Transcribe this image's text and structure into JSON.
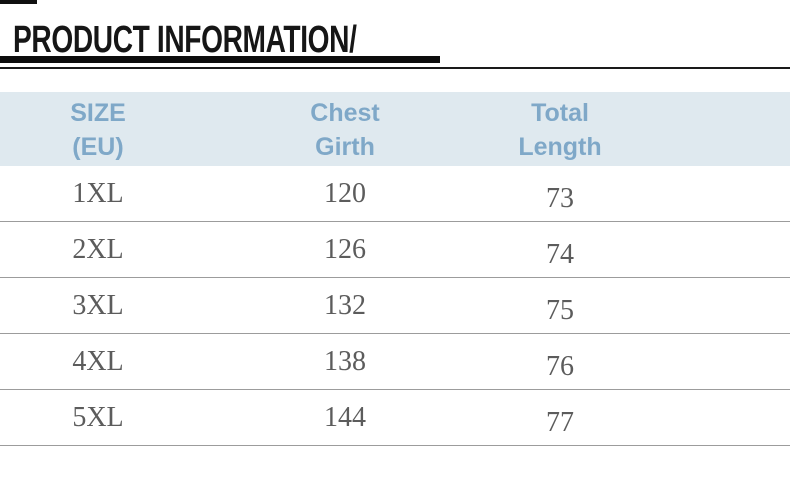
{
  "header": {
    "title": "PRODUCT INFORMATION/"
  },
  "colors": {
    "title_text": "#161616",
    "underline_bar": "#0d0d0d",
    "divider_rule": "#1a1a1a",
    "table_header_bg": "#dfe9ef",
    "table_header_text": "#7fa8c8",
    "table_body_text": "#5c5c5c",
    "row_separator": "#9c9c9c"
  },
  "table": {
    "columns": [
      {
        "id": "size",
        "line1": "SIZE",
        "line2": "(EU)"
      },
      {
        "id": "chest",
        "line1": "Chest",
        "line2": "Girth"
      },
      {
        "id": "length",
        "line1": "Total",
        "line2": "Length"
      }
    ],
    "rows": [
      {
        "size": "1XL",
        "chest": "120",
        "length": "73"
      },
      {
        "size": "2XL",
        "chest": "126",
        "length": "74"
      },
      {
        "size": "3XL",
        "chest": "132",
        "length": "75"
      },
      {
        "size": "4XL",
        "chest": "138",
        "length": "76"
      },
      {
        "size": "5XL",
        "chest": "144",
        "length": "77"
      }
    ]
  }
}
